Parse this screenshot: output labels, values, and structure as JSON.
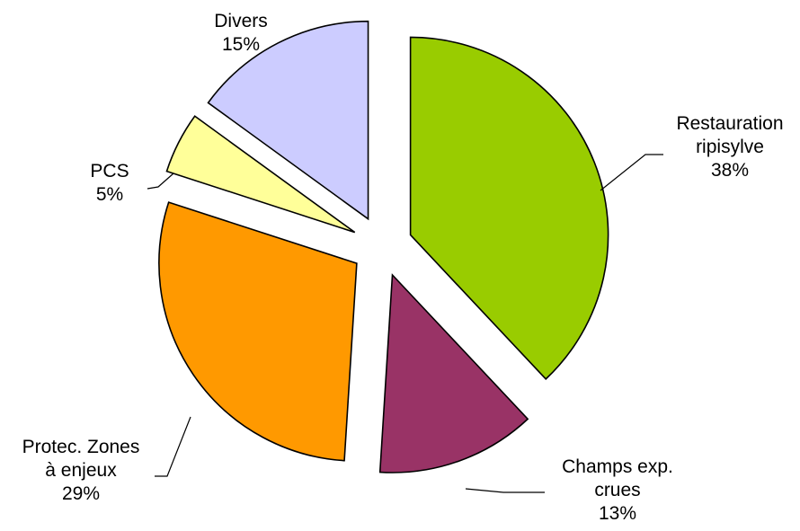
{
  "chart_data": {
    "type": "pie",
    "exploded": true,
    "categories": [
      "Restauration ripisylve",
      "Champs exp. crues",
      "Protec. Zones à enjeux",
      "PCS",
      "Divers"
    ],
    "values": [
      38,
      13,
      29,
      5,
      15
    ],
    "colors": [
      "#99CC00",
      "#993366",
      "#FF9900",
      "#FFFF99",
      "#CCCCFF"
    ],
    "slices": [
      {
        "label_lines": [
          "Restauration",
          "ripisylve"
        ],
        "percent_label": "38%"
      },
      {
        "label_lines": [
          "Champs exp.",
          "crues"
        ],
        "percent_label": "13%"
      },
      {
        "label_lines": [
          "Protec. Zones",
          "à enjeux"
        ],
        "percent_label": "29%"
      },
      {
        "label_lines": [
          "PCS"
        ],
        "percent_label": "5%"
      },
      {
        "label_lines": [
          "Divers"
        ],
        "percent_label": "15%"
      }
    ]
  }
}
